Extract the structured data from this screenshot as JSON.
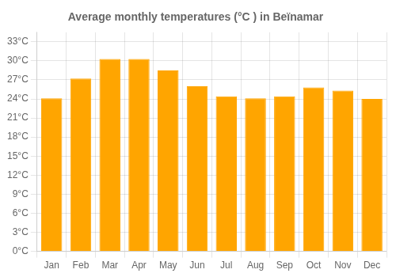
{
  "chart_data": {
    "type": "bar",
    "title": "Average monthly temperatures (°C ) in Beïnamar",
    "categories": [
      "Jan",
      "Feb",
      "Mar",
      "Apr",
      "May",
      "Jun",
      "Jul",
      "Aug",
      "Sep",
      "Oct",
      "Nov",
      "Dec"
    ],
    "values": [
      24.1,
      27.2,
      30.3,
      30.3,
      28.5,
      26.0,
      24.4,
      24.1,
      24.4,
      25.8,
      25.3,
      24.0
    ],
    "color": "#FFA500",
    "ylim": [
      0,
      34.5
    ],
    "yticks": [
      {
        "value": 0,
        "label": "0°C"
      },
      {
        "value": 3,
        "label": "3°C"
      },
      {
        "value": 6,
        "label": "6°C"
      },
      {
        "value": 9,
        "label": "9°C"
      },
      {
        "value": 12,
        "label": "12°C"
      },
      {
        "value": 15,
        "label": "15°C"
      },
      {
        "value": 18,
        "label": "18°C"
      },
      {
        "value": 21,
        "label": "21°C"
      },
      {
        "value": 24,
        "label": "24°C"
      },
      {
        "value": 27,
        "label": "27°C"
      },
      {
        "value": 30,
        "label": "30°C"
      },
      {
        "value": 33,
        "label": "33°C"
      }
    ],
    "grid": true
  }
}
